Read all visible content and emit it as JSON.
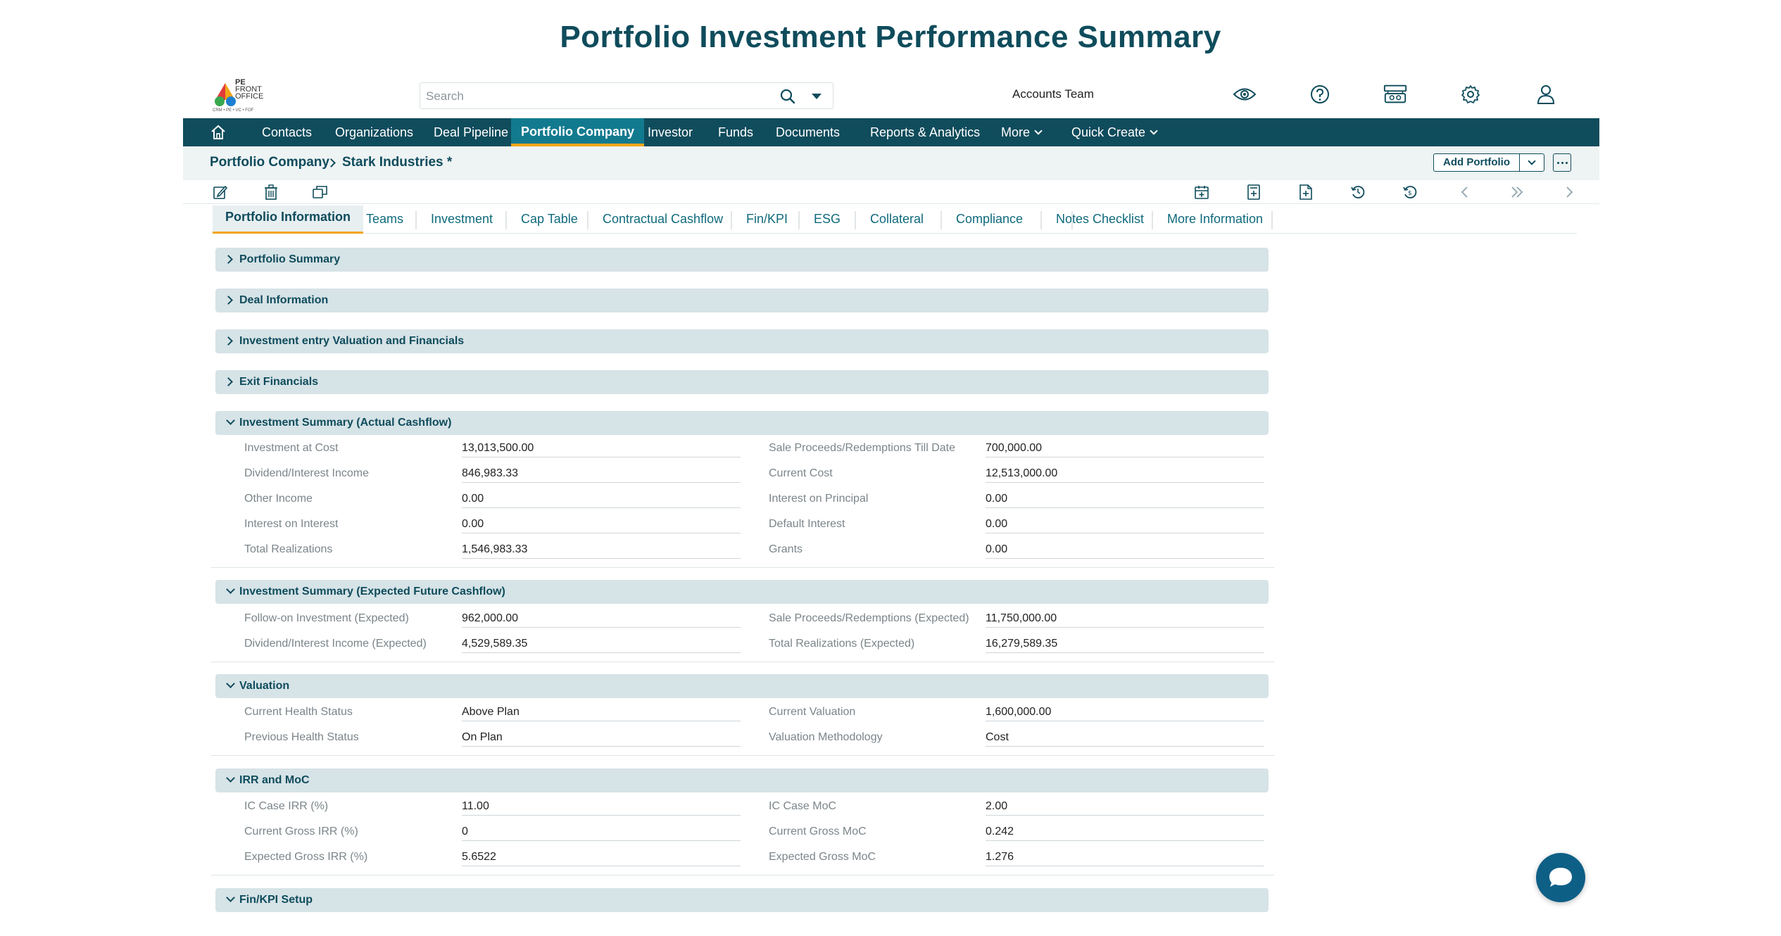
{
  "page_title": "Portfolio Investment Performance Summary",
  "logo": {
    "line1": "PE",
    "line2": "FRONT",
    "line3": "OFFICE",
    "tagline": "CRM • PE • VC • FOF"
  },
  "search": {
    "placeholder": "Search"
  },
  "header": {
    "accounts_team": "Accounts Team",
    "icons": [
      "eye-icon",
      "help-icon",
      "contacts-card-icon",
      "gear-icon",
      "user-icon"
    ]
  },
  "nav": {
    "items": [
      {
        "label": "Contacts"
      },
      {
        "label": "Organizations"
      },
      {
        "label": "Deal Pipeline"
      },
      {
        "label": "Portfolio Company",
        "active": true
      },
      {
        "label": "Investor"
      },
      {
        "label": "Funds"
      },
      {
        "label": "Documents"
      },
      {
        "label": "Reports & Analytics"
      },
      {
        "label": "More"
      },
      {
        "label": "Quick Create"
      }
    ]
  },
  "breadcrumb": {
    "root": "Portfolio Company",
    "current": "Stark Industries *"
  },
  "actions": {
    "add_portfolio": "Add Portfolio"
  },
  "tabs": [
    {
      "label": "Portfolio Information",
      "active": true
    },
    {
      "label": "Teams"
    },
    {
      "label": "Investment"
    },
    {
      "label": "Cap Table"
    },
    {
      "label": "Contractual Cashflow"
    },
    {
      "label": "Fin/KPI"
    },
    {
      "label": "ESG"
    },
    {
      "label": "Collateral"
    },
    {
      "label": "Compliance"
    },
    {
      "label": "Notes"
    },
    {
      "label": "Checklist"
    },
    {
      "label": "More Information"
    }
  ],
  "sections": {
    "portfolio_summary": {
      "title": "Portfolio Summary",
      "expanded": false
    },
    "deal_information": {
      "title": "Deal Information",
      "expanded": false
    },
    "entry_valuation": {
      "title": "Investment entry Valuation and Financials",
      "expanded": false
    },
    "exit_financials": {
      "title": "Exit Financials",
      "expanded": false
    },
    "actual": {
      "title": "Investment Summary (Actual Cashflow)",
      "expanded": true,
      "left": [
        {
          "label": "Investment at Cost",
          "value": "13,013,500.00"
        },
        {
          "label": "Dividend/Interest Income",
          "value": "846,983.33"
        },
        {
          "label": "Other Income",
          "value": "0.00"
        },
        {
          "label": "Interest on Interest",
          "value": "0.00"
        },
        {
          "label": "Total Realizations",
          "value": "1,546,983.33"
        }
      ],
      "right": [
        {
          "label": "Sale Proceeds/Redemptions Till Date",
          "value": "700,000.00"
        },
        {
          "label": "Current Cost",
          "value": "12,513,000.00"
        },
        {
          "label": "Interest on Principal",
          "value": "0.00"
        },
        {
          "label": "Default Interest",
          "value": "0.00"
        },
        {
          "label": "Grants",
          "value": "0.00"
        }
      ]
    },
    "expected": {
      "title": "Investment Summary (Expected Future Cashflow)",
      "expanded": true,
      "left": [
        {
          "label": "Follow-on Investment (Expected)",
          "value": "962,000.00"
        },
        {
          "label": "Dividend/Interest Income (Expected)",
          "value": "4,529,589.35"
        }
      ],
      "right": [
        {
          "label": "Sale Proceeds/Redemptions (Expected)",
          "value": "11,750,000.00"
        },
        {
          "label": "Total Realizations (Expected)",
          "value": "16,279,589.35"
        }
      ]
    },
    "valuation": {
      "title": "Valuation",
      "expanded": true,
      "left": [
        {
          "label": "Current Health Status",
          "value": "Above Plan"
        },
        {
          "label": "Previous Health Status",
          "value": "On Plan"
        }
      ],
      "right": [
        {
          "label": "Current Valuation",
          "value": "1,600,000.00"
        },
        {
          "label": "Valuation Methodology",
          "value": "Cost"
        }
      ]
    },
    "irr": {
      "title": "IRR and MoC",
      "expanded": true,
      "left": [
        {
          "label": "IC Case IRR (%)",
          "value": "11.00"
        },
        {
          "label": "Current Gross IRR (%)",
          "value": "0"
        },
        {
          "label": "Expected Gross IRR (%)",
          "value": "5.6522"
        }
      ],
      "right": [
        {
          "label": "IC Case MoC",
          "value": "2.00"
        },
        {
          "label": "Current Gross MoC",
          "value": "0.242"
        },
        {
          "label": "Expected Gross MoC",
          "value": "1.276"
        }
      ]
    },
    "finkpi": {
      "title": "Fin/KPI Setup",
      "expanded": true
    }
  },
  "colors": {
    "primary": "#0f4c5c",
    "accent": "#f2a51a",
    "section_bg": "#d6e3e7",
    "chat": "#0e5f86"
  }
}
